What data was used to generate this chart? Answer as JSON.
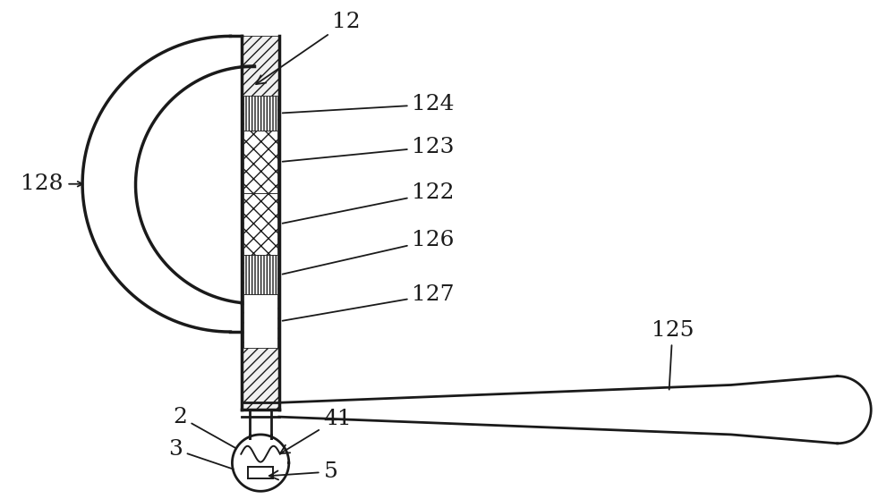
{
  "bg_color": "#ffffff",
  "line_color": "#1a1a1a",
  "lw": 2.0,
  "fig_w": 10.0,
  "fig_h": 5.58
}
